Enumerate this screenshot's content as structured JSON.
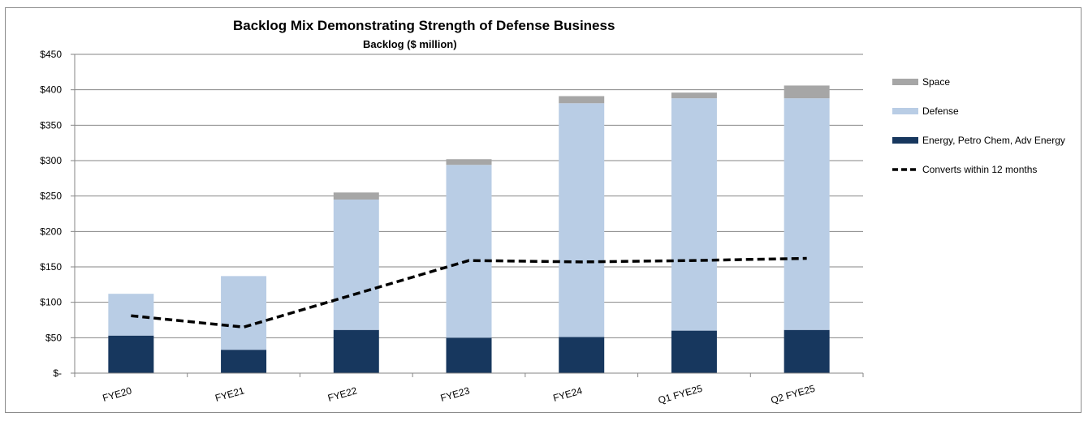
{
  "chart_data": {
    "type": "bar",
    "stacked": true,
    "title": "Backlog Mix Demonstrating Strength of Defense Business",
    "subtitle": "Backlog ($ million)",
    "categories": [
      "FYE20",
      "FYE21",
      "FYE22",
      "FYE23",
      "FYE24",
      "Q1 FYE25",
      "Q2 FYE25"
    ],
    "series": [
      {
        "name": "Energy, Petro Chem, Adv Energy",
        "color": "#17375e",
        "values": [
          53,
          33,
          61,
          50,
          51,
          60,
          61
        ]
      },
      {
        "name": "Defense",
        "color": "#b9cde5",
        "values": [
          59,
          104,
          184,
          244,
          330,
          328,
          327
        ]
      },
      {
        "name": "Space",
        "color": "#a6a6a6",
        "values": [
          0,
          0,
          10,
          8,
          10,
          8,
          18
        ]
      }
    ],
    "line_series": {
      "name": "Converts within 12 months",
      "color": "#000000",
      "style": "dashed",
      "values": [
        81,
        65,
        112,
        159,
        157,
        159,
        162
      ]
    },
    "ylim": [
      0,
      450
    ],
    "yticks": [
      0,
      50,
      100,
      150,
      200,
      250,
      300,
      350,
      400,
      450
    ],
    "ytick_labels": [
      "$-",
      "$50",
      "$100",
      "$150",
      "$200",
      "$250",
      "$300",
      "$350",
      "$400",
      "$450"
    ],
    "xlabel": "",
    "ylabel": "",
    "legend_position": "right",
    "grid": true
  }
}
